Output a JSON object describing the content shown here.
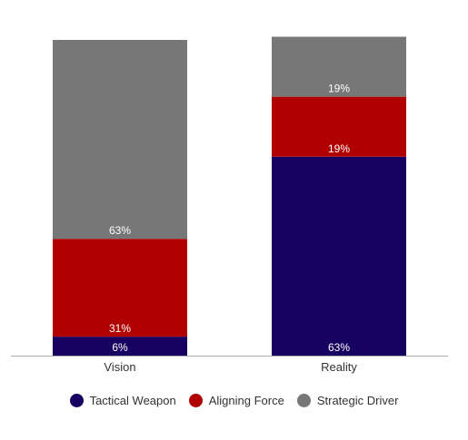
{
  "chart_data": {
    "type": "bar",
    "stacked": true,
    "categories": [
      "Vision",
      "Reality"
    ],
    "series": [
      {
        "name": "Tactical Weapon",
        "color": "#170060",
        "values": [
          6,
          63
        ],
        "labels": [
          "6%",
          "63%"
        ]
      },
      {
        "name": "Aligning Force",
        "color": "#b00000",
        "values": [
          31,
          19
        ],
        "labels": [
          "31%",
          "19%"
        ]
      },
      {
        "name": "Strategic Driver",
        "color": "#777777",
        "values": [
          63,
          19
        ],
        "labels": [
          "63%",
          "19%"
        ]
      }
    ],
    "legend_position": "bottom",
    "grid": false
  }
}
